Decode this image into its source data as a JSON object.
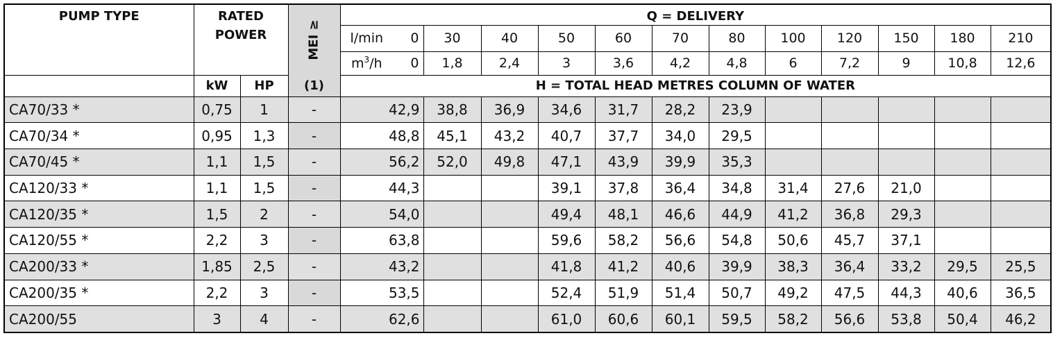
{
  "header": {
    "pump_type": "PUMP TYPE",
    "rated": "RATED",
    "power": "POWER",
    "mei": "MEI ≥",
    "mei_note": "(1)",
    "kw": "kW",
    "hp": "HP",
    "delivery": "Q = DELIVERY",
    "lmin_label": "l/min",
    "m3h_label": "m",
    "m3h_sup": "3",
    "m3h_suffix": "/h",
    "head": "H = TOTAL HEAD METRES COLUMN OF WATER",
    "lmin": [
      "0",
      "30",
      "40",
      "50",
      "60",
      "70",
      "80",
      "100",
      "120",
      "150",
      "180",
      "210"
    ],
    "m3h": [
      "0",
      "1,8",
      "2,4",
      "3",
      "3,6",
      "4,2",
      "4,8",
      "6",
      "7,2",
      "9",
      "10,8",
      "12,6"
    ]
  },
  "rows": [
    {
      "name": "CA70/33 *",
      "kw": "0,75",
      "hp": "1",
      "mei": "-",
      "h": [
        "42,9",
        "38,8",
        "36,9",
        "34,6",
        "31,7",
        "28,2",
        "23,9",
        "",
        "",
        "",
        "",
        ""
      ]
    },
    {
      "name": "CA70/34 *",
      "kw": "0,95",
      "hp": "1,3",
      "mei": "-",
      "h": [
        "48,8",
        "45,1",
        "43,2",
        "40,7",
        "37,7",
        "34,0",
        "29,5",
        "",
        "",
        "",
        "",
        ""
      ]
    },
    {
      "name": "CA70/45 *",
      "kw": "1,1",
      "hp": "1,5",
      "mei": "-",
      "h": [
        "56,2",
        "52,0",
        "49,8",
        "47,1",
        "43,9",
        "39,9",
        "35,3",
        "",
        "",
        "",
        "",
        ""
      ]
    },
    {
      "name": "CA120/33 *",
      "kw": "1,1",
      "hp": "1,5",
      "mei": "-",
      "h": [
        "44,3",
        "",
        "",
        "39,1",
        "37,8",
        "36,4",
        "34,8",
        "31,4",
        "27,6",
        "21,0",
        "",
        ""
      ]
    },
    {
      "name": "CA120/35 *",
      "kw": "1,5",
      "hp": "2",
      "mei": "-",
      "h": [
        "54,0",
        "",
        "",
        "49,4",
        "48,1",
        "46,6",
        "44,9",
        "41,2",
        "36,8",
        "29,3",
        "",
        ""
      ]
    },
    {
      "name": "CA120/55 *",
      "kw": "2,2",
      "hp": "3",
      "mei": "-",
      "h": [
        "63,8",
        "",
        "",
        "59,6",
        "58,2",
        "56,6",
        "54,8",
        "50,6",
        "45,7",
        "37,1",
        "",
        ""
      ]
    },
    {
      "name": "CA200/33 *",
      "kw": "1,85",
      "hp": "2,5",
      "mei": "-",
      "h": [
        "43,2",
        "",
        "",
        "41,8",
        "41,2",
        "40,6",
        "39,9",
        "38,3",
        "36,4",
        "33,2",
        "29,5",
        "25,5"
      ]
    },
    {
      "name": "CA200/35 *",
      "kw": "2,2",
      "hp": "3",
      "mei": "-",
      "h": [
        "53,5",
        "",
        "",
        "52,4",
        "51,9",
        "51,4",
        "50,7",
        "49,2",
        "47,5",
        "44,3",
        "40,6",
        "36,5"
      ]
    },
    {
      "name": "CA200/55",
      "kw": "3",
      "hp": "4",
      "mei": "-",
      "h": [
        "62,6",
        "",
        "",
        "61,0",
        "60,6",
        "60,1",
        "59,5",
        "58,2",
        "56,6",
        "53,8",
        "50,4",
        "46,2"
      ]
    }
  ]
}
